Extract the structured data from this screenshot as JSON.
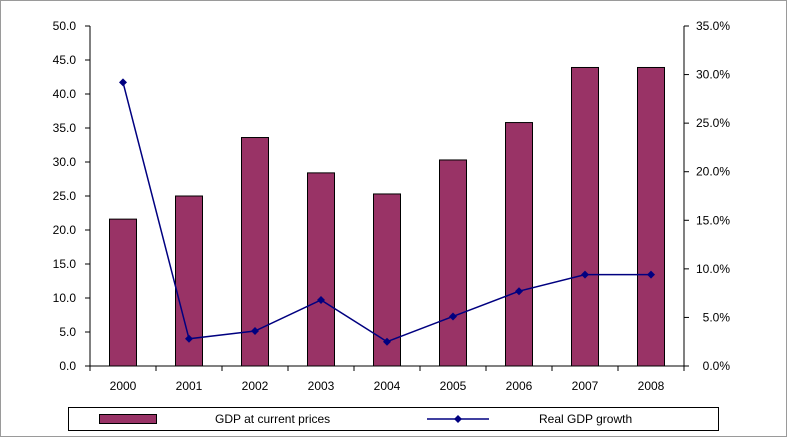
{
  "colors": {
    "bar": "#993366",
    "line": "#000080",
    "axis": "#000000"
  },
  "chart_data": {
    "type": "bar",
    "categories": [
      "2000",
      "2001",
      "2002",
      "2003",
      "2004",
      "2005",
      "2006",
      "2007",
      "2008"
    ],
    "series": [
      {
        "name": "GDP at current prices",
        "type": "bar",
        "axis": "left",
        "values": [
          21.6,
          25.0,
          33.6,
          28.4,
          25.3,
          30.3,
          35.8,
          43.9,
          43.9
        ]
      },
      {
        "name": "Real GDP growth",
        "type": "line",
        "axis": "right",
        "values": [
          0.292,
          0.028,
          0.036,
          0.068,
          0.025,
          0.051,
          0.077,
          0.094,
          0.094
        ]
      }
    ],
    "left_axis": {
      "min": 0,
      "max": 50,
      "step": 5,
      "ticks": [
        "0.0",
        "5.0",
        "10.0",
        "15.0",
        "20.0",
        "25.0",
        "30.0",
        "35.0",
        "40.0",
        "45.0",
        "50.0"
      ]
    },
    "right_axis": {
      "min": 0,
      "max": 0.35,
      "step": 0.05,
      "ticks": [
        "0.0%",
        "5.0%",
        "10.0%",
        "15.0%",
        "20.0%",
        "25.0%",
        "30.0%",
        "35.0%"
      ]
    },
    "title": "",
    "xlabel": "",
    "ylabel": "",
    "grid": false,
    "legend_position": "bottom"
  }
}
